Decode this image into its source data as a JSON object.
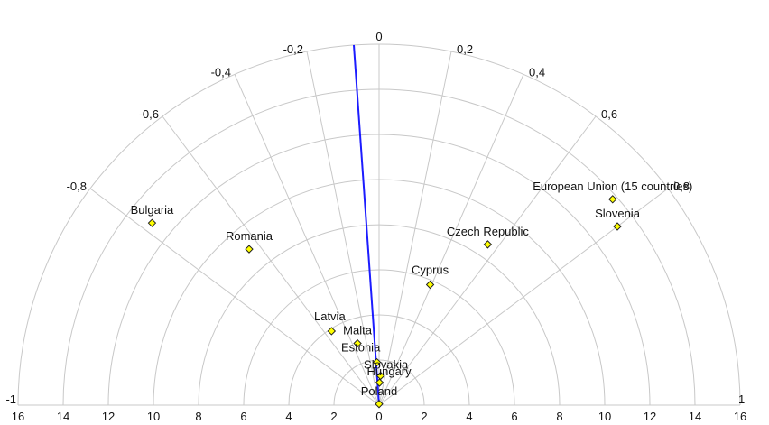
{
  "chart_data": {
    "type": "scatter",
    "title": "",
    "radial_axis": {
      "range": [
        0,
        16
      ],
      "tick_labels_left": [
        "16",
        "14",
        "12",
        "10",
        "8",
        "6",
        "4",
        "2",
        "0"
      ],
      "tick_labels_right": [
        "2",
        "4",
        "6",
        "8",
        "10",
        "12",
        "14",
        "16"
      ]
    },
    "angular_axis": {
      "range": [
        -1,
        1
      ],
      "tick_values": [
        -1,
        -0.8,
        -0.6,
        -0.4,
        -0.2,
        0,
        0.2,
        0.4,
        0.6,
        0.8,
        1
      ],
      "tick_labels": [
        "-1",
        "-0,8",
        "-0,6",
        "-0,4",
        "-0,2",
        "0",
        "0,2",
        "0,4",
        "0,6",
        "0,8",
        "1"
      ]
    },
    "trend_line": {
      "angle": -0.07,
      "r_start": 0,
      "r_end": 16
    },
    "points": [
      {
        "label": "Bulgaria",
        "angle": -0.78,
        "r": 12.9,
        "color": "#ffff00"
      },
      {
        "label": "Romania",
        "angle": -0.64,
        "r": 9.0,
        "color": "#ffff00"
      },
      {
        "label": "Latvia",
        "angle": -0.54,
        "r": 3.9,
        "color": "#ffff00"
      },
      {
        "label": "Malta",
        "angle": -0.33,
        "r": 2.9,
        "color": "#ffff00"
      },
      {
        "label": "Estonia",
        "angle": -0.05,
        "r": 1.9,
        "color": "#ffff00"
      },
      {
        "label": "Slovakia",
        "angle": 0.05,
        "r": 1.3,
        "color": "#ffff00"
      },
      {
        "label": "Hungary",
        "angle": 0.02,
        "r": 1.0,
        "color": "#ffff00"
      },
      {
        "label": "Poland",
        "angle": 0.0,
        "r": 0.05,
        "color": "#ffff00"
      },
      {
        "label": "Cyprus",
        "angle": 0.39,
        "r": 5.8,
        "color": "#ffff00"
      },
      {
        "label": "Czech Republic",
        "angle": 0.56,
        "r": 8.6,
        "color": "#ffff00"
      },
      {
        "label": "European Union (15 countries)",
        "angle": 0.75,
        "r": 13.8,
        "color": "#ffff00"
      },
      {
        "label": "Slovenia",
        "angle": 0.8,
        "r": 13.2,
        "color": "#ffff00"
      }
    ]
  }
}
